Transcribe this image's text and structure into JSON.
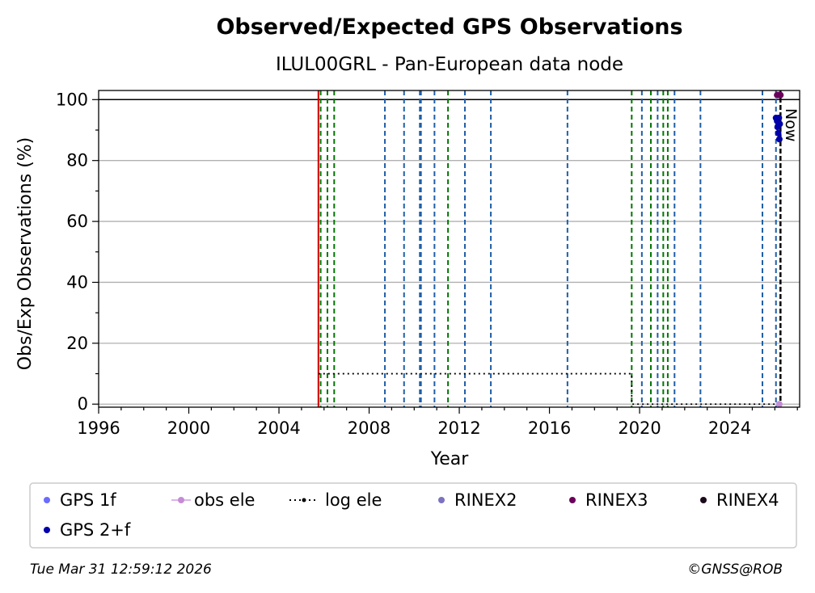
{
  "chart_data": {
    "type": "scatter",
    "title": "Observed/Expected GPS Observations",
    "subtitle": "ILUL00GRL - Pan-European data node",
    "xlabel": "Year",
    "ylabel": "Obs/Exp Observations (%)",
    "xlim": [
      1996,
      2027.1
    ],
    "ylim": [
      -1,
      103
    ],
    "x_ticks": [
      1996,
      2000,
      2004,
      2008,
      2012,
      2016,
      2020,
      2024
    ],
    "y_ticks": [
      0,
      20,
      40,
      60,
      80,
      100
    ],
    "grid": "y",
    "reference_line_y": 100,
    "now_label": "Now",
    "now_x": 2026.25,
    "start_line": {
      "x": 2005.75,
      "color": "#cc0000"
    },
    "event_lines": [
      {
        "x": 2005.85,
        "color": "#007700"
      },
      {
        "x": 2006.15,
        "color": "#007700"
      },
      {
        "x": 2006.45,
        "color": "#007700"
      },
      {
        "x": 2008.7,
        "color": "#1f5fa8"
      },
      {
        "x": 2009.55,
        "color": "#1f5fa8"
      },
      {
        "x": 2010.25,
        "color": "#1f5fa8"
      },
      {
        "x": 2010.3,
        "color": "#1f5fa8"
      },
      {
        "x": 2010.9,
        "color": "#1f5fa8"
      },
      {
        "x": 2011.5,
        "color": "#007700"
      },
      {
        "x": 2012.25,
        "color": "#1f5fa8"
      },
      {
        "x": 2013.4,
        "color": "#1f5fa8"
      },
      {
        "x": 2016.8,
        "color": "#1f5fa8"
      },
      {
        "x": 2019.65,
        "color": "#007700"
      },
      {
        "x": 2020.1,
        "color": "#1f5fa8"
      },
      {
        "x": 2020.5,
        "color": "#007700"
      },
      {
        "x": 2020.8,
        "color": "#1f5fa8"
      },
      {
        "x": 2021.05,
        "color": "#007700"
      },
      {
        "x": 2021.25,
        "color": "#007700"
      },
      {
        "x": 2021.55,
        "color": "#1f5fa8"
      },
      {
        "x": 2022.7,
        "color": "#1f5fa8"
      },
      {
        "x": 2025.45,
        "color": "#1f5fa8"
      },
      {
        "x": 2026.05,
        "color": "#1f5fa8"
      }
    ],
    "log_ele": {
      "name": "log ele",
      "color": "#000000",
      "points": [
        [
          2005.75,
          10
        ],
        [
          2019.65,
          10
        ],
        [
          2019.65,
          0
        ],
        [
          2026.2,
          0
        ]
      ]
    },
    "series": [
      {
        "name": "GPS 1f",
        "color": "#6b6bff",
        "points": []
      },
      {
        "name": "obs ele",
        "color": "#c58bd6",
        "points": [
          [
            2026.2,
            0
          ]
        ]
      },
      {
        "name": "log ele",
        "color": "#000000",
        "points": []
      },
      {
        "name": "RINEX2",
        "color": "#7b72c0",
        "points": []
      },
      {
        "name": "RINEX3",
        "color": "#6b005b",
        "points": [
          [
            2026.1,
            101.5
          ],
          [
            2026.15,
            101.5
          ],
          [
            2026.2,
            101.5
          ],
          [
            2026.25,
            101.5
          ]
        ]
      },
      {
        "name": "RINEX4",
        "color": "#1a0a1a",
        "points": []
      },
      {
        "name": "GPS 2+f",
        "color": "#0000aa",
        "points": [
          [
            2026.05,
            94
          ],
          [
            2026.1,
            93
          ],
          [
            2026.12,
            91
          ],
          [
            2026.15,
            89
          ],
          [
            2026.18,
            94
          ],
          [
            2026.2,
            87
          ],
          [
            2026.22,
            92
          ]
        ]
      }
    ],
    "legend": {
      "placement": "bottom",
      "entries": [
        {
          "label": "GPS 1f",
          "color": "#6b6bff",
          "style": "dot"
        },
        {
          "label": "obs ele",
          "color": "#c58bd6",
          "style": "line-dot"
        },
        {
          "label": "log ele",
          "color": "#000000",
          "style": "dotted-line"
        },
        {
          "label": "RINEX2",
          "color": "#7b72c0",
          "style": "dot"
        },
        {
          "label": "RINEX3",
          "color": "#6b005b",
          "style": "dot"
        },
        {
          "label": "RINEX4",
          "color": "#1a0a1a",
          "style": "dot"
        },
        {
          "label": "GPS 2+f",
          "color": "#0000aa",
          "style": "dot"
        }
      ]
    }
  },
  "footer": {
    "timestamp": "Tue Mar 31 12:59:12 2026",
    "credit": "©GNSS@ROB"
  }
}
